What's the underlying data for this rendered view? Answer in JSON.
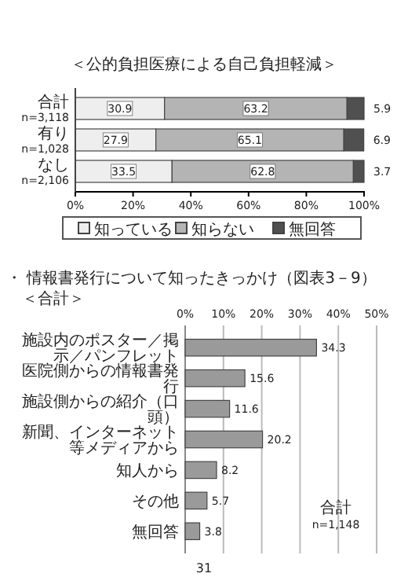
{
  "chart_data": [
    {
      "type": "bar",
      "orientation": "horizontal",
      "stacked": true,
      "title": "＜公的負担医療による自己負担軽減＞",
      "categories": [
        "合計 n=3,118",
        "有り n=1,028",
        "なし n=2,106"
      ],
      "series": [
        {
          "name": "知っている",
          "color": "#eeeeee",
          "values": [
            30.9,
            27.9,
            33.5
          ]
        },
        {
          "name": "知らない",
          "color": "#b4b4b4",
          "values": [
            63.2,
            65.1,
            62.8
          ]
        },
        {
          "name": "無回答",
          "color": "#505050",
          "values": [
            5.9,
            6.9,
            3.7
          ]
        }
      ],
      "xlim": [
        0,
        100
      ],
      "xticks": [
        {
          "value": 0,
          "label": "0%"
        },
        {
          "value": 20,
          "label": "20%"
        },
        {
          "value": 40,
          "label": "40%"
        },
        {
          "value": 60,
          "label": "60%"
        },
        {
          "value": 80,
          "label": "80%"
        },
        {
          "value": 100,
          "label": "100%"
        }
      ],
      "data_labels": true,
      "legend": "bottom",
      "grid": false
    },
    {
      "type": "bar",
      "orientation": "horizontal",
      "title": "・ 情報書発行について知ったきっかけ（図表3－9）",
      "subtitle": "＜合計＞",
      "categories": [
        "施設内のポスター／掲示／パンフレット",
        "医院側からの情報書発行",
        "施設側からの紹介（口頭）",
        "新聞、インターネット等メディアから",
        "知人から",
        "その他",
        "無回答"
      ],
      "values": [
        34.3,
        15.6,
        11.6,
        20.2,
        8.2,
        5.7,
        3.8
      ],
      "color": "#9a9a9a",
      "xlim": [
        0,
        50
      ],
      "xticks": [
        {
          "value": 0,
          "label": "0%"
        },
        {
          "value": 10,
          "label": "10%"
        },
        {
          "value": 20,
          "label": "20%"
        },
        {
          "value": 30,
          "label": "30%"
        },
        {
          "value": 40,
          "label": "40%"
        },
        {
          "value": 50,
          "label": "50%"
        }
      ],
      "data_labels": true,
      "grid": "x",
      "annotations": [
        "合計 n=1,148",
        "31"
      ]
    }
  ]
}
